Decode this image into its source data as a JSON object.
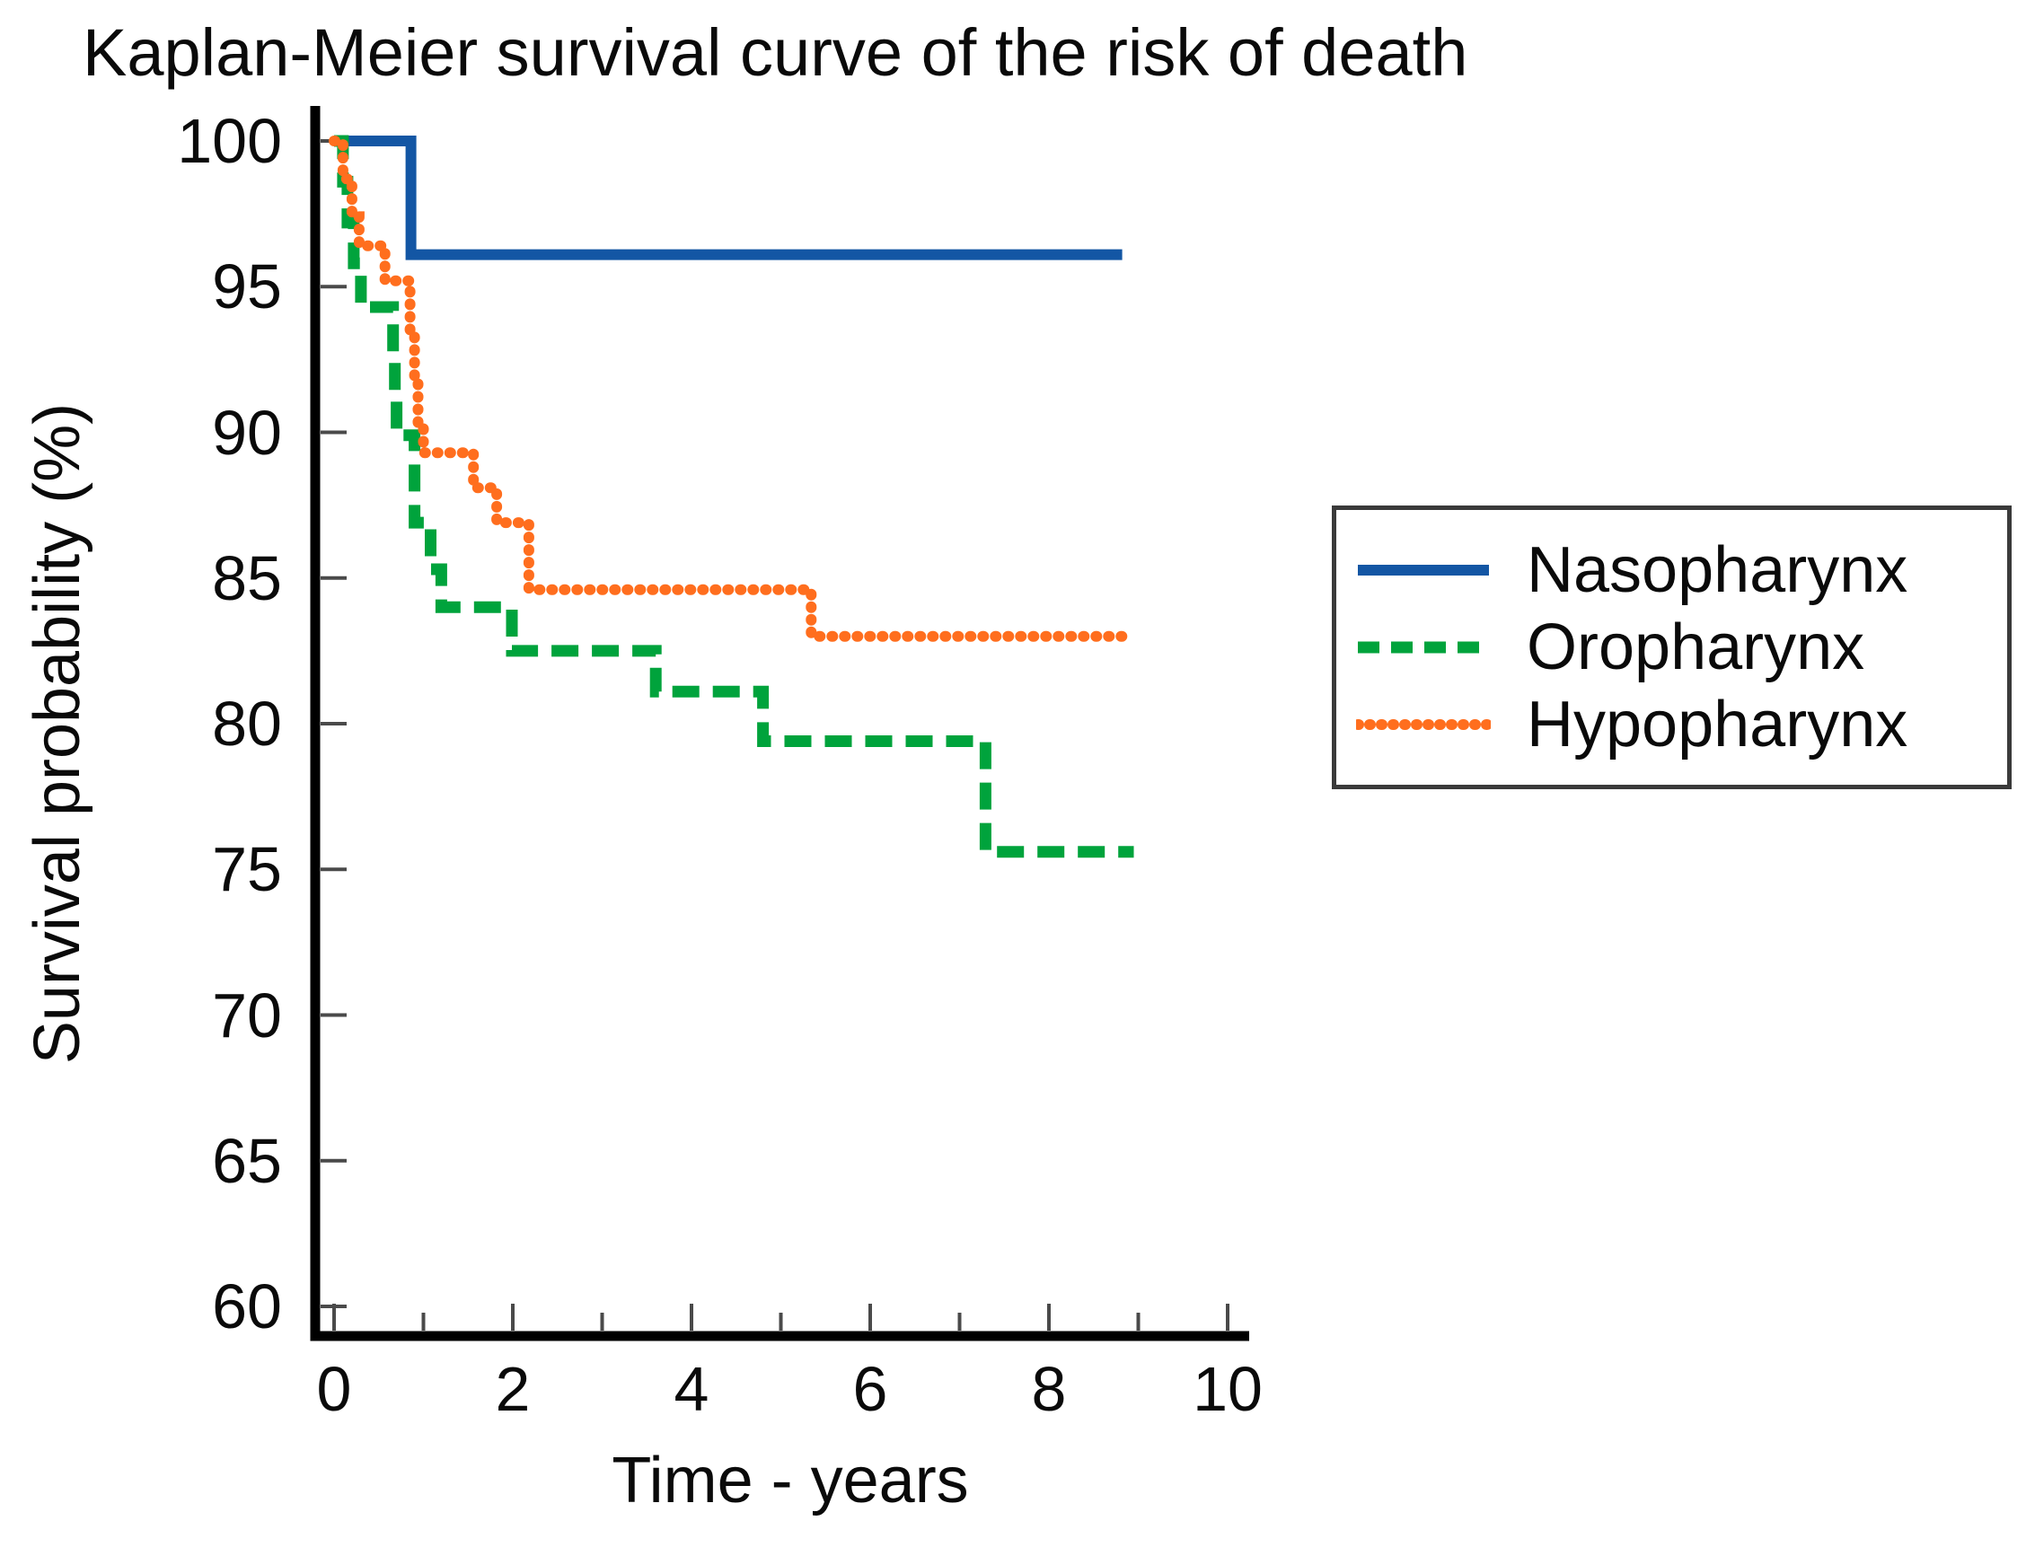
{
  "title": "Kaplan-Meier survival curve of the risk of death",
  "chart_data": {
    "type": "line",
    "subtype": "kaplan-meier-step",
    "title": "Kaplan-Meier survival curve of the risk of death",
    "xlabel": "Time - years",
    "ylabel": "Survival probability (%)",
    "xlim": [
      0,
      10
    ],
    "ylim": [
      60,
      100
    ],
    "grid": false,
    "legend_position": "right",
    "x_major_ticks": [
      0,
      2,
      4,
      6,
      8,
      10
    ],
    "x_minor_ticks": [
      1,
      3,
      5,
      7,
      9
    ],
    "y_ticks": [
      100,
      95,
      90,
      85,
      80,
      75,
      70,
      65,
      60
    ],
    "series": [
      {
        "name": "Nasopharynx",
        "color": "#1356A4",
        "line_style": "solid",
        "points": [
          [
            0,
            100
          ],
          [
            0.86,
            100
          ],
          [
            0.86,
            96.1
          ],
          [
            8.82,
            96.1
          ]
        ]
      },
      {
        "name": "Oropharynx",
        "color": "#00A33C",
        "line_style": "dashed",
        "points": [
          [
            0,
            100
          ],
          [
            0.1,
            100
          ],
          [
            0.1,
            98.6
          ],
          [
            0.15,
            98.6
          ],
          [
            0.15,
            97.2
          ],
          [
            0.22,
            97.2
          ],
          [
            0.22,
            95.8
          ],
          [
            0.3,
            95.8
          ],
          [
            0.3,
            94.3
          ],
          [
            0.66,
            94.3
          ],
          [
            0.66,
            92.6
          ],
          [
            0.68,
            92.6
          ],
          [
            0.68,
            91.2
          ],
          [
            0.7,
            91.2
          ],
          [
            0.7,
            89.9
          ],
          [
            0.9,
            89.9
          ],
          [
            0.9,
            86.9
          ],
          [
            1.08,
            86.9
          ],
          [
            1.08,
            85.3
          ],
          [
            1.2,
            85.3
          ],
          [
            1.2,
            84.0
          ],
          [
            1.99,
            84.0
          ],
          [
            1.99,
            82.5
          ],
          [
            3.6,
            82.5
          ],
          [
            3.6,
            81.1
          ],
          [
            4.8,
            81.1
          ],
          [
            4.8,
            79.4
          ],
          [
            7.29,
            79.4
          ],
          [
            7.29,
            75.6
          ],
          [
            8.95,
            75.6
          ]
        ]
      },
      {
        "name": "Hypopharynx",
        "color": "#FF6E1E",
        "line_style": "dotted",
        "points": [
          [
            0,
            100
          ],
          [
            0.1,
            100
          ],
          [
            0.1,
            98.7
          ],
          [
            0.2,
            98.7
          ],
          [
            0.2,
            97.4
          ],
          [
            0.28,
            97.4
          ],
          [
            0.28,
            96.4
          ],
          [
            0.57,
            96.4
          ],
          [
            0.57,
            95.2
          ],
          [
            0.85,
            95.2
          ],
          [
            0.85,
            93.5
          ],
          [
            0.9,
            93.5
          ],
          [
            0.9,
            91.9
          ],
          [
            0.94,
            91.9
          ],
          [
            0.94,
            90.3
          ],
          [
            1.0,
            90.3
          ],
          [
            1.0,
            89.3
          ],
          [
            1.56,
            89.3
          ],
          [
            1.56,
            88.1
          ],
          [
            1.82,
            88.1
          ],
          [
            1.82,
            86.9
          ],
          [
            2.18,
            86.9
          ],
          [
            2.18,
            84.6
          ],
          [
            5.34,
            84.6
          ],
          [
            5.34,
            83.0
          ],
          [
            8.9,
            83.0
          ]
        ]
      }
    ]
  },
  "colors": {
    "background": "#ffffff",
    "axis": "#000000",
    "tick": "#4a4a4a",
    "text": "#0a0a0a",
    "legend_border": "#3a3a3a"
  }
}
